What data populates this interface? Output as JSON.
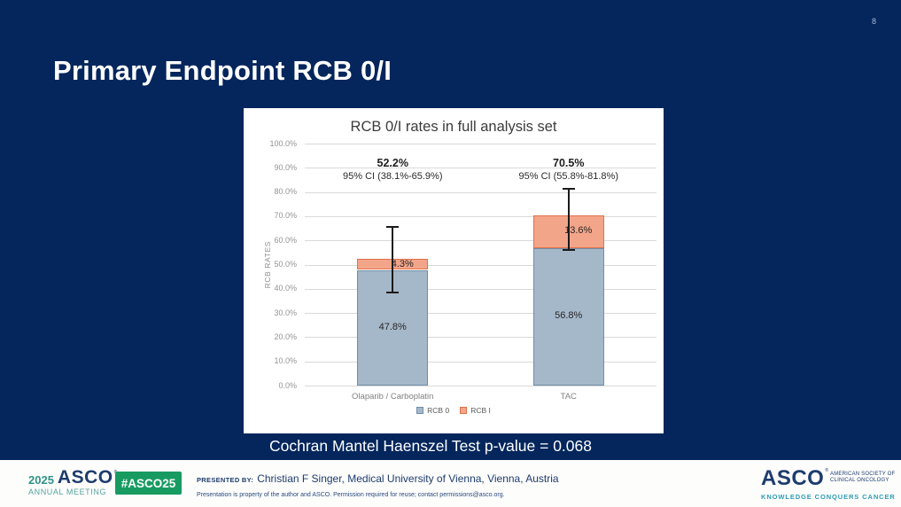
{
  "slide": {
    "page_number": "8",
    "title": "Primary Endpoint RCB 0/I",
    "p_value_note": "Cochran Mantel Haenszel Test p-value = 0.068"
  },
  "chart_data": {
    "type": "bar",
    "subtype": "stacked",
    "title": "RCB 0/I rates in full analysis set",
    "xlabel": "",
    "ylabel": "RCB RATES",
    "ylim": [
      0,
      100
    ],
    "ytick_step": 10,
    "ytick_labels": [
      "0.0%",
      "10.0%",
      "20.0%",
      "30.0%",
      "40.0%",
      "50.0%",
      "60.0%",
      "70.0%",
      "80.0%",
      "90.0%",
      "100.0%"
    ],
    "grid": true,
    "legend_position": "bottom",
    "categories": [
      "Olaparib / Carboplatin",
      "TAC"
    ],
    "series": [
      {
        "name": "RCB 0",
        "values": [
          47.8,
          56.8
        ],
        "color": "#a5b8c9",
        "border_color": "#708ea7"
      },
      {
        "name": "RCB I",
        "values": [
          4.3,
          13.6
        ],
        "color": "#f3a58a",
        "border_color": "#df714b"
      }
    ],
    "totals": [
      52.2,
      70.5
    ],
    "total_labels": [
      "52.2%",
      "70.5%"
    ],
    "ci_labels": [
      "95% CI (38.1%-65.9%)",
      "95% CI (55.8%-81.8%)"
    ],
    "error_bars": [
      {
        "low": 38.1,
        "high": 65.9
      },
      {
        "low": 55.8,
        "high": 81.8
      }
    ],
    "segment_labels": [
      [
        "47.8%",
        "4.3%"
      ],
      [
        "56.8%",
        "13.6%"
      ]
    ]
  },
  "footer": {
    "meeting_logo": {
      "year": "2025",
      "brand": "ASCO",
      "reg": "®",
      "sub": "ANNUAL MEETING"
    },
    "hashtag": "#ASCO25",
    "presented_by_label": "PRESENTED BY:",
    "presenter": "Christian F Singer, Medical University of Vienna, Vienna, Austria",
    "disclaimer": "Presentation is property of the author and ASCO. Permission required for reuse; contact permissions@asco.org.",
    "society_logo": {
      "brand": "ASCO",
      "reg": "®",
      "line1": "AMERICAN SOCIETY OF",
      "line2": "CLINICAL ONCOLOGY",
      "tagline": "KNOWLEDGE CONQUERS CANCER"
    }
  },
  "colors": {
    "background": "#04265c",
    "panel": "#ffffff",
    "grid": "#d9d9d9",
    "error_bar": "#1a1a1a",
    "accent_green": "#179b61",
    "footer_navy": "#1d3c6d",
    "teal": "#2f9cb3",
    "meeting_teal": "#2f9486"
  }
}
